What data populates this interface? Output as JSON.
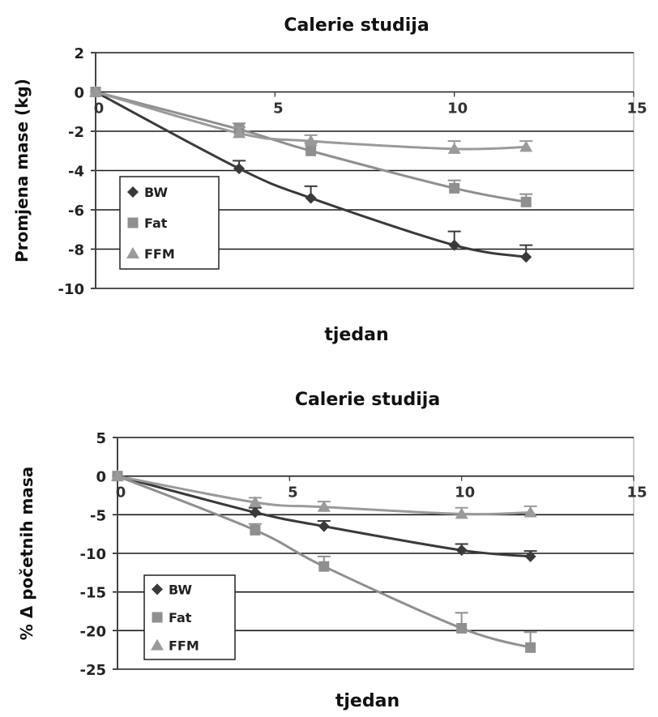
{
  "colors": {
    "BW": "#3a3a3a",
    "Fat": "#8f8f8f",
    "FFM": "#9a9a9a",
    "grid": "#1a1a1a",
    "frame": "#999999"
  },
  "chart_data": [
    {
      "type": "line",
      "title": "Calerie studija",
      "xlabel": "tjedan",
      "ylabel": "Promjena mase (kg)",
      "xlim": [
        0,
        15
      ],
      "ylim": [
        -10,
        2
      ],
      "xticks": [
        "0",
        "5",
        "10",
        "15"
      ],
      "yticks": [
        "2",
        "0",
        "-2",
        "-4",
        "-6",
        "-8",
        "-10"
      ],
      "grid": true,
      "legend_position": "bottom-left",
      "x": [
        0,
        4,
        6,
        10,
        12
      ],
      "series": [
        {
          "name": "BW",
          "marker": "diamond",
          "values": [
            0,
            -3.9,
            -5.4,
            -7.8,
            -8.4
          ],
          "error": [
            0,
            0.4,
            0.6,
            0.7,
            0.6
          ]
        },
        {
          "name": "Fat",
          "marker": "square",
          "values": [
            0,
            -1.9,
            -3.0,
            -4.9,
            -5.6
          ],
          "error": [
            0,
            0.3,
            0.4,
            0.4,
            0.4
          ]
        },
        {
          "name": "FFM",
          "marker": "triangle",
          "values": [
            0,
            -2.1,
            -2.5,
            -2.9,
            -2.8
          ],
          "error": [
            0,
            0.3,
            0.3,
            0.4,
            0.3
          ]
        }
      ]
    },
    {
      "type": "line",
      "title": "Calerie studija",
      "xlabel": "tjedan",
      "ylabel": "% Δ početnih masa",
      "xlim": [
        0,
        15
      ],
      "ylim": [
        -25,
        5
      ],
      "xticks": [
        "0",
        "5",
        "10",
        "15"
      ],
      "yticks": [
        "5",
        "0",
        "-5",
        "-10",
        "-15",
        "-20",
        "-25"
      ],
      "grid": true,
      "legend_position": "bottom-left",
      "x": [
        0,
        4,
        6,
        10,
        12
      ],
      "series": [
        {
          "name": "BW",
          "marker": "diamond",
          "values": [
            0,
            -4.7,
            -6.5,
            -9.6,
            -10.4
          ],
          "error": [
            0,
            0.6,
            0.7,
            0.8,
            0.7
          ]
        },
        {
          "name": "Fat",
          "marker": "square",
          "values": [
            0,
            -7.0,
            -11.7,
            -19.7,
            -22.2
          ],
          "error": [
            0,
            0.8,
            1.3,
            2.0,
            2.0
          ]
        },
        {
          "name": "FFM",
          "marker": "triangle",
          "values": [
            0,
            -3.4,
            -4.0,
            -4.9,
            -4.7
          ],
          "error": [
            0,
            0.6,
            0.7,
            0.8,
            0.8
          ]
        }
      ]
    }
  ]
}
